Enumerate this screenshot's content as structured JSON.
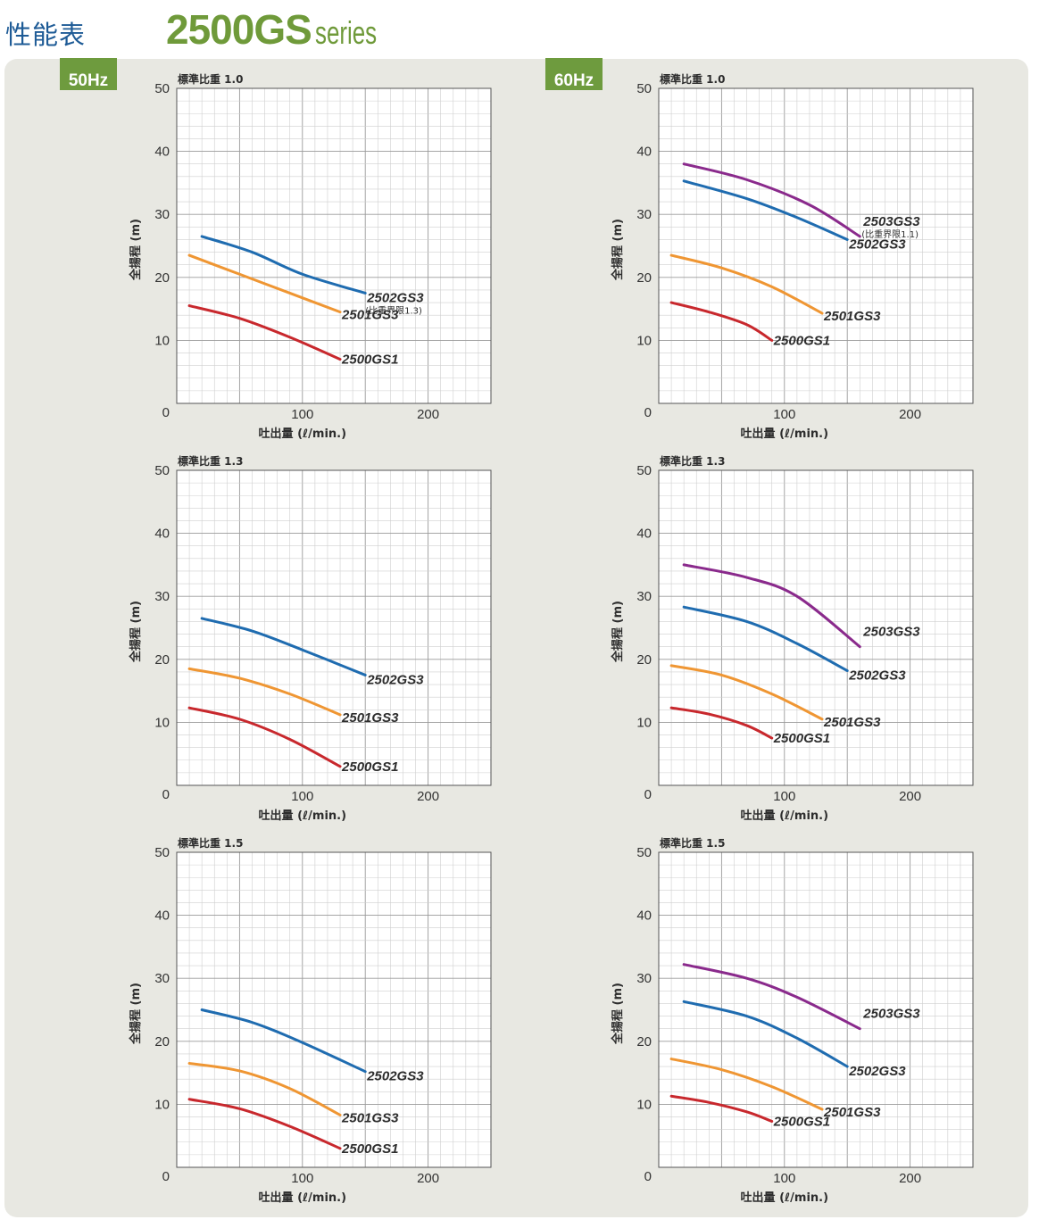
{
  "page_title": "性能表",
  "series_title": {
    "main": "2500GS",
    "sub": "series"
  },
  "frequency_tags": [
    "50Hz",
    "60Hz"
  ],
  "colors": {
    "2500GS1": "#c8282d",
    "2501GS3": "#ef9633",
    "2502GS3": "#1f6cb0",
    "2503GS3": "#8a2a8c",
    "tag_bg": "#6e9b3e",
    "panel_bg": "#e8e8e2"
  },
  "chart_data": [
    {
      "type": "line",
      "frequency": "50Hz",
      "gravity_label": "標準比重 1.0",
      "xlabel": "吐出量 (ℓ/min.)",
      "ylabel": "全揚程 (m)",
      "xlim": [
        0,
        250
      ],
      "ylim": [
        0,
        50
      ],
      "xticks": [
        "100",
        "200"
      ],
      "yticks": [
        "0",
        "10",
        "20",
        "30",
        "40",
        "50"
      ],
      "series": [
        {
          "name": "2502GS3",
          "note": "(比重界限1.3)",
          "color": "#1f6cb0",
          "points": [
            [
              20,
              26.5
            ],
            [
              60,
              24
            ],
            [
              100,
              20.5
            ],
            [
              150,
              17.5
            ]
          ]
        },
        {
          "name": "2501GS3",
          "color": "#ef9633",
          "points": [
            [
              10,
              23.5
            ],
            [
              50,
              20.5
            ],
            [
              90,
              17.5
            ],
            [
              130,
              14.5
            ]
          ]
        },
        {
          "name": "2500GS1",
          "color": "#c8282d",
          "points": [
            [
              10,
              15.5
            ],
            [
              50,
              13.5
            ],
            [
              90,
              10.5
            ],
            [
              130,
              7
            ]
          ]
        }
      ]
    },
    {
      "type": "line",
      "frequency": "60Hz",
      "gravity_label": "標準比重 1.0",
      "xlabel": "吐出量 (ℓ/min.)",
      "ylabel": "全揚程 (m)",
      "xlim": [
        0,
        250
      ],
      "ylim": [
        0,
        50
      ],
      "xticks": [
        "100",
        "200"
      ],
      "yticks": [
        "0",
        "10",
        "20",
        "30",
        "40",
        "50"
      ],
      "series": [
        {
          "name": "2503GS3",
          "note": "(比重界限1.1)",
          "color": "#8a2a8c",
          "points": [
            [
              20,
              38
            ],
            [
              70,
              35.5
            ],
            [
              120,
              31.5
            ],
            [
              160,
              26.5
            ]
          ]
        },
        {
          "name": "2502GS3",
          "color": "#1f6cb0",
          "points": [
            [
              20,
              35.3
            ],
            [
              70,
              32.5
            ],
            [
              110,
              29.5
            ],
            [
              150,
              26
            ]
          ]
        },
        {
          "name": "2501GS3",
          "color": "#ef9633",
          "points": [
            [
              10,
              23.5
            ],
            [
              50,
              21.5
            ],
            [
              90,
              18.5
            ],
            [
              130,
              14.3
            ]
          ]
        },
        {
          "name": "2500GS1",
          "color": "#c8282d",
          "points": [
            [
              10,
              16
            ],
            [
              40,
              14.5
            ],
            [
              70,
              12.5
            ],
            [
              90,
              10
            ]
          ]
        }
      ]
    },
    {
      "type": "line",
      "frequency": "50Hz",
      "gravity_label": "標準比重 1.3",
      "xlabel": "吐出量 (ℓ/min.)",
      "ylabel": "全揚程 (m)",
      "xlim": [
        0,
        250
      ],
      "ylim": [
        0,
        50
      ],
      "xticks": [
        "100",
        "200"
      ],
      "yticks": [
        "0",
        "10",
        "20",
        "30",
        "40",
        "50"
      ],
      "series": [
        {
          "name": "2502GS3",
          "color": "#1f6cb0",
          "points": [
            [
              20,
              26.5
            ],
            [
              60,
              24.5
            ],
            [
              100,
              21.5
            ],
            [
              150,
              17.5
            ]
          ]
        },
        {
          "name": "2501GS3",
          "color": "#ef9633",
          "points": [
            [
              10,
              18.5
            ],
            [
              50,
              17
            ],
            [
              90,
              14.5
            ],
            [
              130,
              11.2
            ]
          ]
        },
        {
          "name": "2500GS1",
          "color": "#c8282d",
          "points": [
            [
              10,
              12.3
            ],
            [
              50,
              10.5
            ],
            [
              90,
              7.3
            ],
            [
              130,
              3
            ]
          ]
        }
      ]
    },
    {
      "type": "line",
      "frequency": "60Hz",
      "gravity_label": "標準比重 1.3",
      "xlabel": "吐出量 (ℓ/min.)",
      "ylabel": "全揚程 (m)",
      "xlim": [
        0,
        250
      ],
      "ylim": [
        0,
        50
      ],
      "xticks": [
        "100",
        "200"
      ],
      "yticks": [
        "0",
        "10",
        "20",
        "30",
        "40",
        "50"
      ],
      "series": [
        {
          "name": "2503GS3",
          "color": "#8a2a8c",
          "points": [
            [
              20,
              35
            ],
            [
              70,
              33
            ],
            [
              110,
              30
            ],
            [
              160,
              22
            ]
          ]
        },
        {
          "name": "2502GS3",
          "color": "#1f6cb0",
          "points": [
            [
              20,
              28.3
            ],
            [
              70,
              26
            ],
            [
              110,
              22.5
            ],
            [
              150,
              18.2
            ]
          ]
        },
        {
          "name": "2501GS3",
          "color": "#ef9633",
          "points": [
            [
              10,
              19
            ],
            [
              50,
              17.5
            ],
            [
              90,
              14.5
            ],
            [
              130,
              10.5
            ]
          ]
        },
        {
          "name": "2500GS1",
          "color": "#c8282d",
          "points": [
            [
              10,
              12.3
            ],
            [
              40,
              11.3
            ],
            [
              70,
              9.5
            ],
            [
              90,
              7.5
            ]
          ]
        }
      ]
    },
    {
      "type": "line",
      "frequency": "50Hz",
      "gravity_label": "標準比重 1.5",
      "xlabel": "吐出量 (ℓ/min.)",
      "ylabel": "全揚程 (m)",
      "xlim": [
        0,
        250
      ],
      "ylim": [
        0,
        50
      ],
      "xticks": [
        "100",
        "200"
      ],
      "yticks": [
        "0",
        "10",
        "20",
        "30",
        "40",
        "50"
      ],
      "series": [
        {
          "name": "2502GS3",
          "color": "#1f6cb0",
          "points": [
            [
              20,
              25
            ],
            [
              60,
              23
            ],
            [
              100,
              19.8
            ],
            [
              150,
              15.2
            ]
          ]
        },
        {
          "name": "2501GS3",
          "color": "#ef9633",
          "points": [
            [
              10,
              16.5
            ],
            [
              50,
              15.3
            ],
            [
              90,
              12.5
            ],
            [
              130,
              8.3
            ]
          ]
        },
        {
          "name": "2500GS1",
          "color": "#c8282d",
          "points": [
            [
              10,
              10.8
            ],
            [
              50,
              9.3
            ],
            [
              90,
              6.5
            ],
            [
              130,
              3
            ]
          ]
        }
      ]
    },
    {
      "type": "line",
      "frequency": "60Hz",
      "gravity_label": "標準比重 1.5",
      "xlabel": "吐出量 (ℓ/min.)",
      "ylabel": "全揚程 (m)",
      "xlim": [
        0,
        250
      ],
      "ylim": [
        0,
        50
      ],
      "xticks": [
        "100",
        "200"
      ],
      "yticks": [
        "0",
        "10",
        "20",
        "30",
        "40",
        "50"
      ],
      "series": [
        {
          "name": "2503GS3",
          "color": "#8a2a8c",
          "points": [
            [
              20,
              32.2
            ],
            [
              70,
              30
            ],
            [
              110,
              27
            ],
            [
              160,
              22
            ]
          ]
        },
        {
          "name": "2502GS3",
          "color": "#1f6cb0",
          "points": [
            [
              20,
              26.3
            ],
            [
              70,
              24
            ],
            [
              110,
              20.5
            ],
            [
              150,
              16
            ]
          ]
        },
        {
          "name": "2501GS3",
          "color": "#ef9633",
          "points": [
            [
              10,
              17.2
            ],
            [
              50,
              15.5
            ],
            [
              90,
              12.8
            ],
            [
              130,
              9.2
            ]
          ]
        },
        {
          "name": "2500GS1",
          "color": "#c8282d",
          "points": [
            [
              10,
              11.3
            ],
            [
              40,
              10.3
            ],
            [
              70,
              8.8
            ],
            [
              90,
              7.3
            ]
          ]
        }
      ]
    }
  ]
}
